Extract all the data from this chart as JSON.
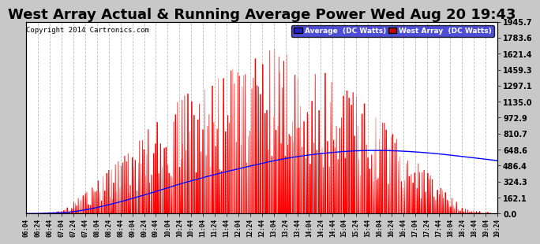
{
  "title": "West Array Actual & Running Average Power Wed Aug 20 19:43",
  "copyright": "Copyright 2014 Cartronics.com",
  "ylabel_right_ticks": [
    0.0,
    162.1,
    324.3,
    486.4,
    648.6,
    810.7,
    972.9,
    1135.0,
    1297.1,
    1459.3,
    1621.4,
    1783.6,
    1945.7
  ],
  "ymax": 1945.7,
  "ymin": 0.0,
  "legend_labels": [
    "Average  (DC Watts)",
    "West Array  (DC Watts)"
  ],
  "bg_color": "#c8c8c8",
  "plot_bg": "#ffffff",
  "grid_color": "#aaaaaa",
  "red_fill": "#ff0000",
  "blue_line": "#0000ff",
  "title_fontsize": 13
}
